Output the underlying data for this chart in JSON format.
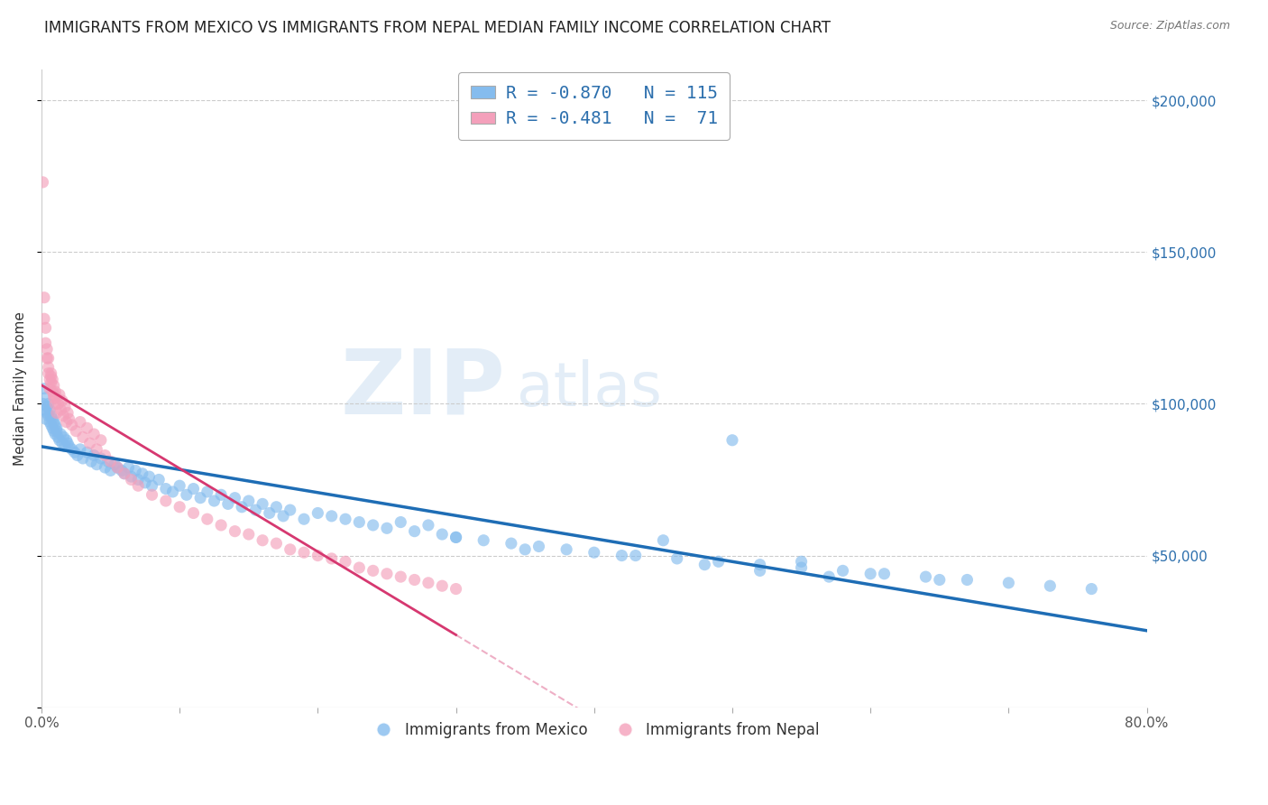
{
  "title": "IMMIGRANTS FROM MEXICO VS IMMIGRANTS FROM NEPAL MEDIAN FAMILY INCOME CORRELATION CHART",
  "source": "Source: ZipAtlas.com",
  "ylabel": "Median Family Income",
  "xlim": [
    0.0,
    0.8
  ],
  "ylim": [
    0,
    210000
  ],
  "yticks": [
    0,
    50000,
    100000,
    150000,
    200000
  ],
  "yticklabels": [
    "",
    "$50,000",
    "$100,000",
    "$150,000",
    "$200,000"
  ],
  "blue_color": "#85bcee",
  "pink_color": "#f4a0bb",
  "blue_line_color": "#1e6db5",
  "pink_line_color": "#d63870",
  "R_blue": -0.87,
  "N_blue": 115,
  "R_pink": -0.481,
  "N_pink": 71,
  "legend_blue_label": "Immigrants from Mexico",
  "legend_pink_label": "Immigrants from Nepal",
  "watermark_zip": "ZIP",
  "watermark_atlas": "atlas",
  "background_color": "#ffffff",
  "grid_color": "#cccccc",
  "title_fontsize": 12,
  "axis_label_fontsize": 11,
  "tick_fontsize": 11,
  "mexico_x": [
    0.001,
    0.002,
    0.002,
    0.003,
    0.003,
    0.004,
    0.004,
    0.005,
    0.005,
    0.006,
    0.006,
    0.007,
    0.007,
    0.008,
    0.008,
    0.009,
    0.009,
    0.01,
    0.01,
    0.011,
    0.011,
    0.012,
    0.013,
    0.014,
    0.015,
    0.016,
    0.017,
    0.018,
    0.019,
    0.02,
    0.022,
    0.024,
    0.026,
    0.028,
    0.03,
    0.033,
    0.036,
    0.038,
    0.04,
    0.043,
    0.046,
    0.048,
    0.05,
    0.053,
    0.055,
    0.058,
    0.06,
    0.063,
    0.065,
    0.068,
    0.07,
    0.073,
    0.075,
    0.078,
    0.08,
    0.085,
    0.09,
    0.095,
    0.1,
    0.105,
    0.11,
    0.115,
    0.12,
    0.125,
    0.13,
    0.135,
    0.14,
    0.145,
    0.15,
    0.155,
    0.16,
    0.165,
    0.17,
    0.175,
    0.18,
    0.19,
    0.2,
    0.21,
    0.22,
    0.23,
    0.24,
    0.25,
    0.26,
    0.27,
    0.28,
    0.29,
    0.3,
    0.32,
    0.34,
    0.36,
    0.38,
    0.4,
    0.43,
    0.46,
    0.49,
    0.52,
    0.55,
    0.58,
    0.61,
    0.64,
    0.67,
    0.7,
    0.73,
    0.76,
    0.5,
    0.45,
    0.55,
    0.6,
    0.35,
    0.65,
    0.3,
    0.42,
    0.48,
    0.52,
    0.57
  ],
  "mexico_y": [
    100000,
    105000,
    98000,
    102000,
    95000,
    99000,
    97000,
    100000,
    96000,
    98000,
    94000,
    96000,
    93000,
    95000,
    92000,
    94000,
    91000,
    93000,
    90000,
    92000,
    91000,
    89000,
    88000,
    90000,
    87000,
    89000,
    86000,
    88000,
    87000,
    86000,
    85000,
    84000,
    83000,
    85000,
    82000,
    84000,
    81000,
    83000,
    80000,
    82000,
    79000,
    81000,
    78000,
    80000,
    79000,
    78000,
    77000,
    79000,
    76000,
    78000,
    75000,
    77000,
    74000,
    76000,
    73000,
    75000,
    72000,
    71000,
    73000,
    70000,
    72000,
    69000,
    71000,
    68000,
    70000,
    67000,
    69000,
    66000,
    68000,
    65000,
    67000,
    64000,
    66000,
    63000,
    65000,
    62000,
    64000,
    63000,
    62000,
    61000,
    60000,
    59000,
    61000,
    58000,
    60000,
    57000,
    56000,
    55000,
    54000,
    53000,
    52000,
    51000,
    50000,
    49000,
    48000,
    47000,
    46000,
    45000,
    44000,
    43000,
    42000,
    41000,
    40000,
    39000,
    88000,
    55000,
    48000,
    44000,
    52000,
    42000,
    56000,
    50000,
    47000,
    45000,
    43000
  ],
  "nepal_x": [
    0.001,
    0.002,
    0.002,
    0.003,
    0.003,
    0.004,
    0.004,
    0.005,
    0.005,
    0.006,
    0.006,
    0.007,
    0.007,
    0.008,
    0.008,
    0.009,
    0.009,
    0.01,
    0.01,
    0.011,
    0.012,
    0.013,
    0.014,
    0.015,
    0.016,
    0.017,
    0.018,
    0.019,
    0.02,
    0.022,
    0.025,
    0.028,
    0.03,
    0.033,
    0.035,
    0.038,
    0.04,
    0.043,
    0.046,
    0.05,
    0.055,
    0.06,
    0.065,
    0.07,
    0.08,
    0.09,
    0.1,
    0.11,
    0.12,
    0.13,
    0.14,
    0.15,
    0.16,
    0.17,
    0.18,
    0.19,
    0.2,
    0.21,
    0.22,
    0.23,
    0.24,
    0.25,
    0.26,
    0.27,
    0.28,
    0.29,
    0.3,
    0.005,
    0.007,
    0.009,
    0.011
  ],
  "nepal_y": [
    173000,
    135000,
    128000,
    120000,
    125000,
    118000,
    115000,
    112000,
    110000,
    108000,
    105000,
    110000,
    107000,
    104000,
    108000,
    102000,
    106000,
    100000,
    104000,
    102000,
    100000,
    103000,
    98000,
    101000,
    96000,
    99000,
    94000,
    97000,
    95000,
    93000,
    91000,
    94000,
    89000,
    92000,
    87000,
    90000,
    85000,
    88000,
    83000,
    81000,
    79000,
    77000,
    75000,
    73000,
    70000,
    68000,
    66000,
    64000,
    62000,
    60000,
    58000,
    57000,
    55000,
    54000,
    52000,
    51000,
    50000,
    49000,
    48000,
    46000,
    45000,
    44000,
    43000,
    42000,
    41000,
    40000,
    39000,
    115000,
    109000,
    103000,
    97000
  ]
}
